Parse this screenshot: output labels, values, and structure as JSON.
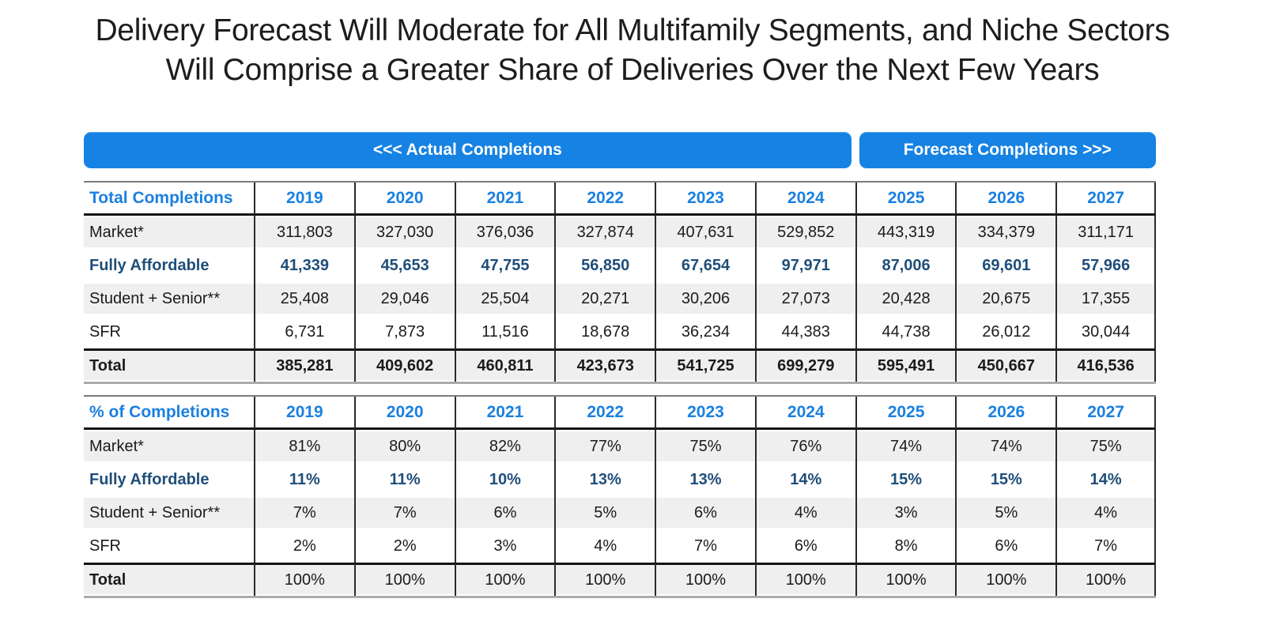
{
  "slide": {
    "title_line1": "Delivery Forecast Will Moderate for All Multifamily Segments, and Niche Sectors",
    "title_line2": "Will Comprise a Greater Share of Deliveries Over the Next Few Years"
  },
  "banners": {
    "actual_label": "<<< Actual Completions",
    "forecast_label": "Forecast Completions >>>"
  },
  "years": [
    "2019",
    "2020",
    "2021",
    "2022",
    "2023",
    "2024",
    "2025",
    "2026",
    "2027"
  ],
  "tables": [
    {
      "title": "Total Completions",
      "rows": [
        {
          "label": "Market*",
          "shaded": true,
          "values": [
            "311,803",
            "327,030",
            "376,036",
            "327,874",
            "407,631",
            "529,852",
            "443,319",
            "334,379",
            "311,171"
          ]
        },
        {
          "label": "Fully Affordable",
          "emphasis": true,
          "values": [
            "41,339",
            "45,653",
            "47,755",
            "56,850",
            "67,654",
            "97,971",
            "87,006",
            "69,601",
            "57,966"
          ]
        },
        {
          "label": "Student + Senior**",
          "shaded": true,
          "values": [
            "25,408",
            "29,046",
            "25,504",
            "20,271",
            "30,206",
            "27,073",
            "20,428",
            "20,675",
            "17,355"
          ]
        },
        {
          "label": "SFR",
          "values": [
            "6,731",
            "7,873",
            "11,516",
            "18,678",
            "36,234",
            "44,383",
            "44,738",
            "26,012",
            "30,044"
          ]
        },
        {
          "label": "Total",
          "is_total": true,
          "bold_values": true,
          "values": [
            "385,281",
            "409,602",
            "460,811",
            "423,673",
            "541,725",
            "699,279",
            "595,491",
            "450,667",
            "416,536"
          ]
        }
      ]
    },
    {
      "title": "% of Completions",
      "rows": [
        {
          "label": "Market*",
          "shaded": true,
          "values": [
            "81%",
            "80%",
            "82%",
            "77%",
            "75%",
            "76%",
            "74%",
            "74%",
            "75%"
          ]
        },
        {
          "label": "Fully Affordable",
          "emphasis": true,
          "values": [
            "11%",
            "11%",
            "10%",
            "13%",
            "13%",
            "14%",
            "15%",
            "15%",
            "14%"
          ]
        },
        {
          "label": "Student + Senior**",
          "shaded": true,
          "values": [
            "7%",
            "7%",
            "6%",
            "5%",
            "6%",
            "4%",
            "3%",
            "5%",
            "4%"
          ]
        },
        {
          "label": "SFR",
          "values": [
            "2%",
            "2%",
            "3%",
            "4%",
            "7%",
            "6%",
            "8%",
            "6%",
            "7%"
          ]
        },
        {
          "label": "Total",
          "is_total": true,
          "bold_values": false,
          "values": [
            "100%",
            "100%",
            "100%",
            "100%",
            "100%",
            "100%",
            "100%",
            "100%",
            "100%"
          ]
        }
      ]
    }
  ],
  "colors": {
    "accent_blue": "#1B80DF",
    "banner_blue": "#1682E3",
    "navy": "#1F4E79",
    "row_shade": "#EFEFEF"
  }
}
